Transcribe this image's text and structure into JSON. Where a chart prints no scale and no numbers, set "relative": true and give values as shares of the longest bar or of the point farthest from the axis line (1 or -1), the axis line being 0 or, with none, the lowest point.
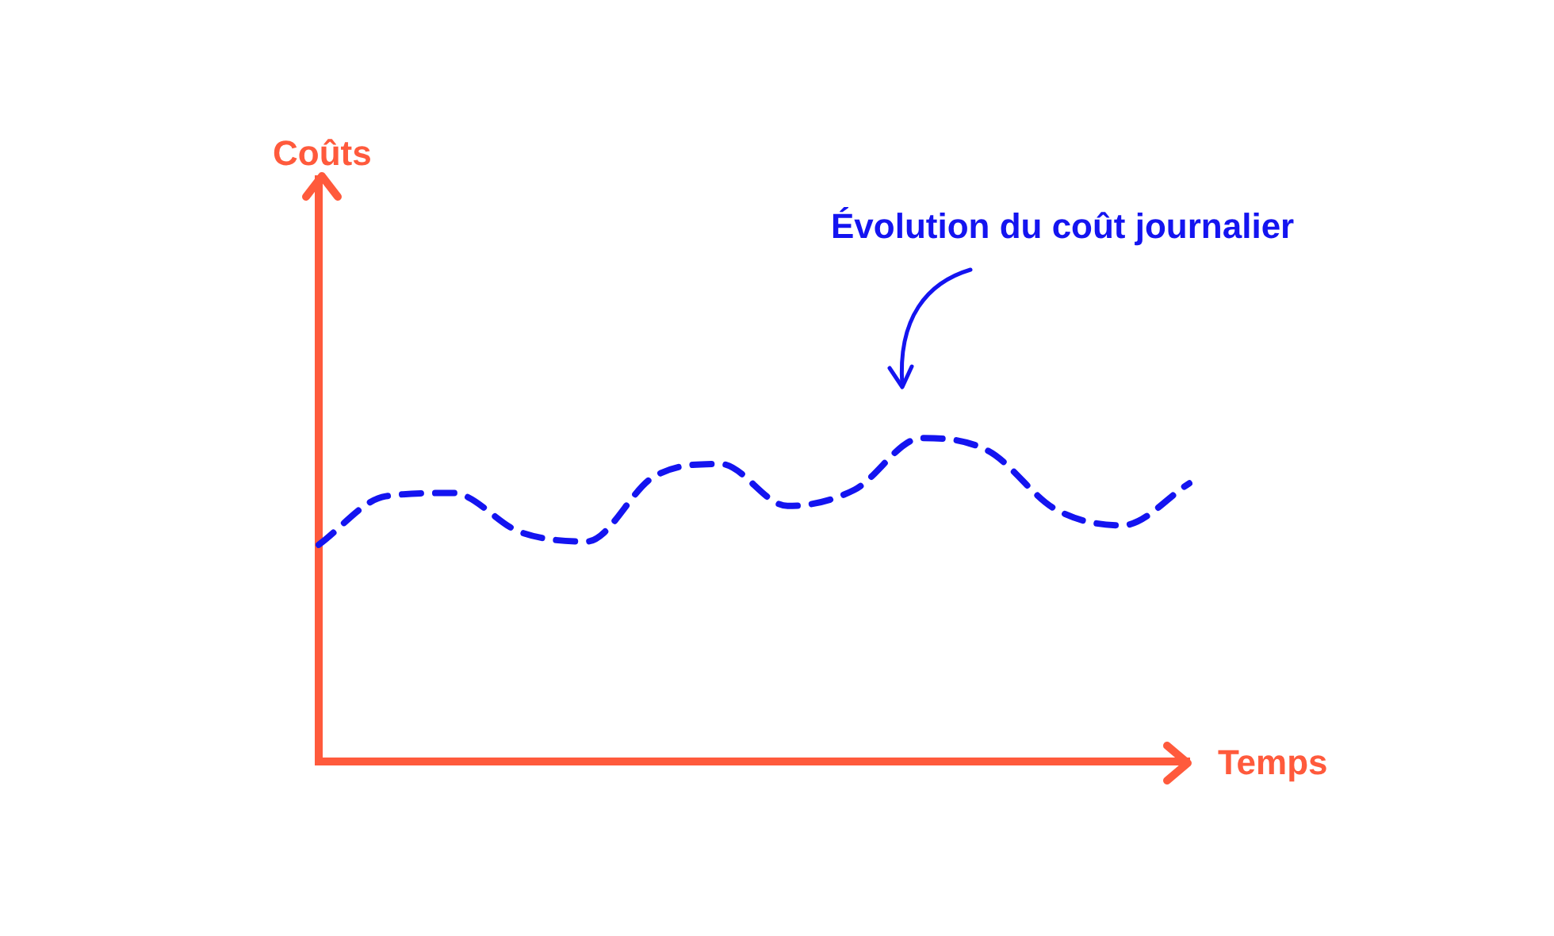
{
  "chart_data": {
    "type": "line",
    "relative": true,
    "xlabel": "Temps",
    "annotations": [
      "Évolution du coût journalier",
      "Coûts"
    ],
    "categories": [
      null,
      null,
      null,
      null,
      null,
      null,
      null,
      null,
      null,
      null,
      null,
      null,
      null,
      null
    ],
    "series": [
      {
        "color": "#1414f0",
        "values": [
          0.67,
          0.82,
          0.83,
          0.71,
          0.68,
          0.88,
          0.92,
          0.79,
          0.84,
          1,
          0.96,
          0.78,
          0.73,
          0.86
        ]
      }
    ],
    "grid": false,
    "legend": false,
    "marker": "none",
    "line_style": "dashed"
  }
}
